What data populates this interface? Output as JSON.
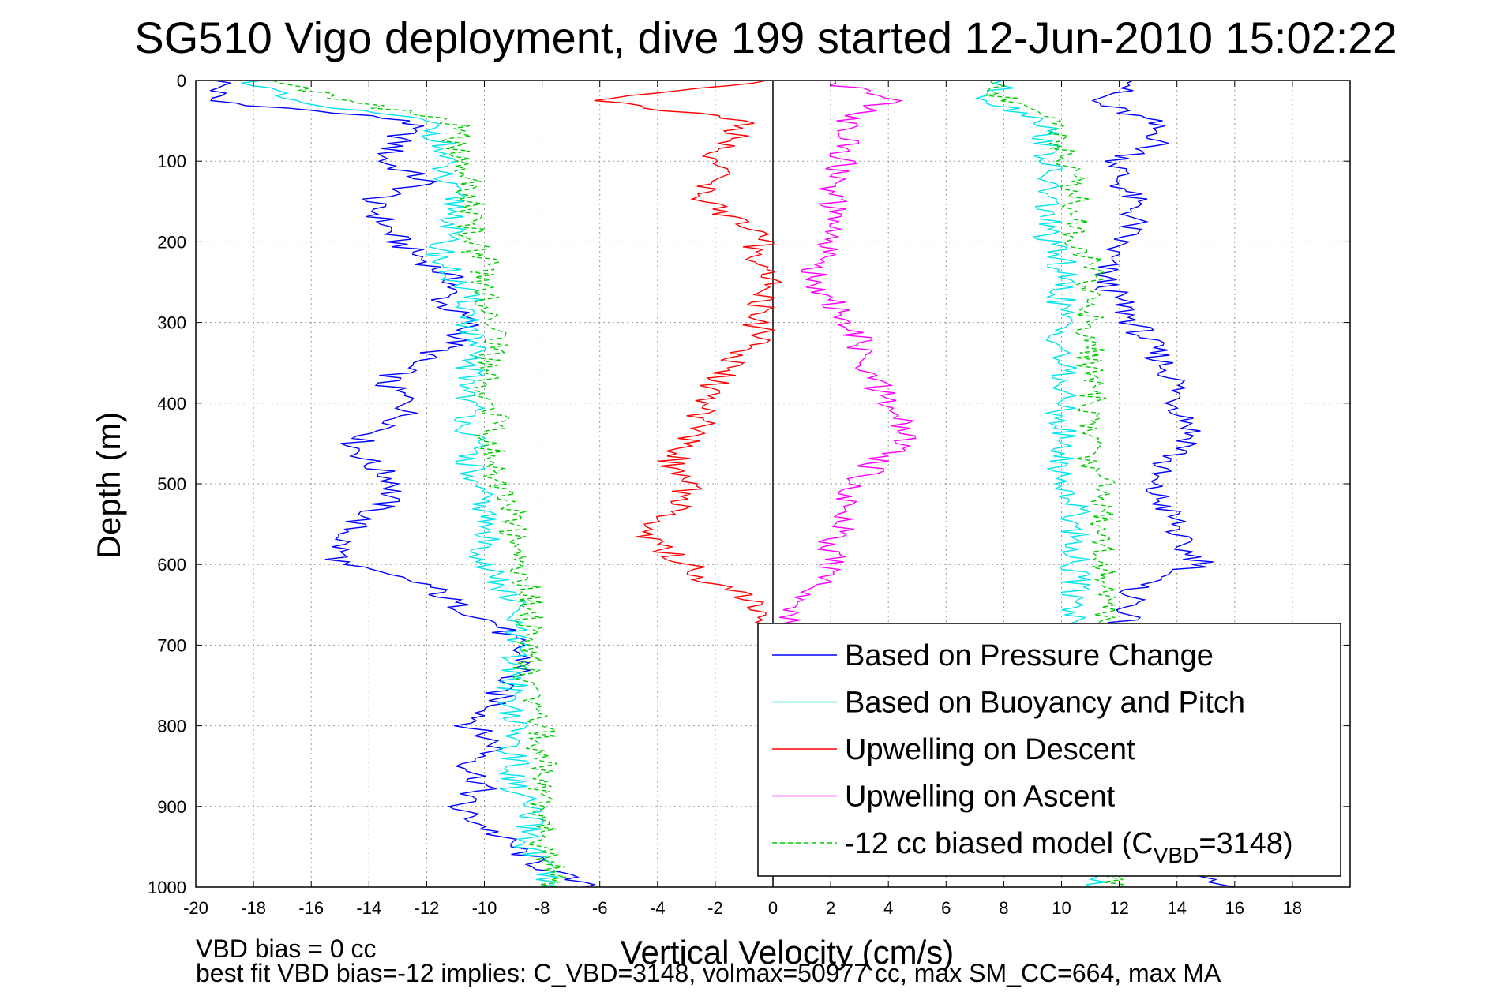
{
  "chart_data": {
    "type": "line",
    "title": "SG510 Vigo deployment, dive 199 started 12-Jun-2010 15:02:22",
    "xlabel": "Vertical Velocity (cm/s)",
    "ylabel": "Depth (m)",
    "xlim": [
      -20,
      20
    ],
    "ylim": [
      0,
      1000
    ],
    "y_reversed": true,
    "grid": true,
    "x_ticks": [
      -20,
      -18,
      -16,
      -14,
      -12,
      -10,
      -8,
      -6,
      -4,
      -2,
      0,
      2,
      4,
      6,
      8,
      10,
      12,
      14,
      16,
      18
    ],
    "y_ticks": [
      0,
      100,
      200,
      300,
      400,
      500,
      600,
      700,
      800,
      900,
      1000
    ],
    "depth_levels": [
      0,
      25,
      50,
      75,
      100,
      125,
      150,
      175,
      200,
      225,
      250,
      275,
      300,
      325,
      350,
      375,
      400,
      425,
      450,
      475,
      500,
      525,
      550,
      575,
      600,
      625,
      650,
      675,
      700,
      725,
      750,
      775,
      800,
      825,
      850,
      875,
      900,
      925,
      950,
      975,
      1000
    ],
    "legend_position": "bottom-right",
    "series": [
      {
        "name": "Based on Pressure Change",
        "color": "#0000ff",
        "dash": "solid",
        "segments": [
          {
            "depth_range": [
              0,
              1000
            ],
            "velocity": [
              -19,
              -19.5,
              -12.5,
              -13,
              -13.5,
              -12,
              -14,
              -13.5,
              -13,
              -12,
              -11,
              -11.5,
              -10.5,
              -11,
              -12.5,
              -13.5,
              -12.5,
              -13,
              -14.5,
              -14,
              -13,
              -13.5,
              -14.5,
              -15,
              -15,
              -12,
              -11,
              -9.5,
              -9,
              -8.5,
              -9.5,
              -9.5,
              -10.5,
              -9.5,
              -10.5,
              -10,
              -11,
              -10,
              -9,
              -8,
              -6.5
            ]
          },
          {
            "depth_range": [
              0,
              1000
            ],
            "velocity": [
              13,
              11,
              13,
              13.5,
              12,
              12,
              12.5,
              12.5,
              12,
              11.5,
              11.5,
              12,
              12.5,
              13,
              13.5,
              14,
              14,
              14.5,
              14.5,
              13.5,
              13,
              13.5,
              14,
              14,
              15,
              12.5,
              12.5,
              12,
              11.5,
              12,
              12,
              11.5,
              12,
              11.5,
              11.5,
              12,
              12,
              12,
              12.5,
              13,
              16
            ]
          }
        ]
      },
      {
        "name": "Based on Buoyancy and Pitch",
        "color": "#00e5ee",
        "dash": "solid",
        "segments": [
          {
            "depth_range": [
              0,
              1000
            ],
            "velocity": [
              -18,
              -17,
              -12,
              -11.5,
              -11.5,
              -11.5,
              -11,
              -11,
              -11.5,
              -11.5,
              -11,
              -10.5,
              -10.5,
              -10.5,
              -10.5,
              -10.5,
              -10.5,
              -10.5,
              -10.5,
              -10.5,
              -10.5,
              -10,
              -10,
              -10,
              -10,
              -9.5,
              -9,
              -9,
              -9,
              -9,
              -9,
              -9,
              -9,
              -9,
              -9,
              -9,
              -8.5,
              -8.5,
              -8.5,
              -8,
              -8
            ]
          },
          {
            "depth_range": [
              0,
              1000
            ],
            "velocity": [
              8,
              7.5,
              9.5,
              9.5,
              9.5,
              9.5,
              9.5,
              9.5,
              9.5,
              10,
              10,
              10,
              10,
              10,
              10,
              10,
              10,
              10,
              10,
              10,
              10,
              10.5,
              10.5,
              10.5,
              10.5,
              10.5,
              10.5,
              10.5,
              10.5,
              10.5,
              10.5,
              10.5,
              10.5,
              10.5,
              10.5,
              10.5,
              10.5,
              10.5,
              10.5,
              11,
              11
            ]
          }
        ]
      },
      {
        "name": "Upwelling on Descent",
        "color": "#ff0000",
        "dash": "solid",
        "depth_range": [
          0,
          675
        ],
        "velocity": [
          0,
          -6,
          -1,
          -1.5,
          -2,
          -2,
          -2.5,
          -1,
          -0.5,
          -0.5,
          0,
          -0.5,
          -0.5,
          -0.5,
          -1.5,
          -2,
          -2.5,
          -2.5,
          -3,
          -3.5,
          -3,
          -3,
          -4.5,
          -4,
          -3,
          -2,
          -0.5,
          0
        ]
      },
      {
        "name": "Upwelling on Ascent",
        "color": "#ff00ff",
        "dash": "solid",
        "depth_range": [
          0,
          675
        ],
        "velocity": [
          2,
          4,
          2.5,
          2.5,
          2.5,
          2,
          2,
          2,
          2,
          1.5,
          1.5,
          2,
          2.5,
          3,
          3,
          3.5,
          4,
          4.5,
          4.5,
          3.5,
          3,
          2.5,
          2.5,
          2,
          2,
          1.5,
          1,
          0.5
        ]
      },
      {
        "name": "-12 cc biased model (C",
        "name_sub": "VBD",
        "name_tail": "=3148)",
        "color": "#00cc00",
        "dash": "dashed",
        "segments": [
          {
            "depth_range": [
              0,
              1000
            ],
            "velocity": [
              -17,
              -15,
              -11,
              -11,
              -11,
              -10.5,
              -10.5,
              -10.5,
              -10.5,
              -10,
              -10,
              -10,
              -9.5,
              -9.5,
              -10,
              -10,
              -10,
              -9.5,
              -10,
              -9.5,
              -9.5,
              -9,
              -9,
              -9,
              -9,
              -8.5,
              -8.5,
              -8.5,
              -8.5,
              -8.5,
              -8.5,
              -8,
              -8,
              -8,
              -8,
              -8,
              -8,
              -8,
              -8,
              -7.5,
              -7.5
            ]
          },
          {
            "depth_range": [
              0,
              1000
            ],
            "velocity": [
              7.5,
              8,
              10,
              10,
              10,
              10.5,
              10.5,
              10.5,
              10.5,
              11,
              11,
              11,
              11,
              11,
              11,
              11,
              11,
              11,
              11,
              11,
              11.5,
              11.5,
              11.5,
              11.5,
              11.5,
              11.5,
              11.5,
              11.5,
              11.5,
              11.5,
              11.5,
              11.5,
              11.5,
              11.5,
              11.5,
              11.5,
              11.5,
              11.5,
              11.5,
              11.5,
              12
            ]
          }
        ]
      }
    ],
    "footnote_line1": "VBD bias = 0 cc",
    "footnote_line2": "best fit VBD bias=-12 implies: C_VBD=3148, volmax=50977 cc, max SM_CC=664, max MA"
  }
}
